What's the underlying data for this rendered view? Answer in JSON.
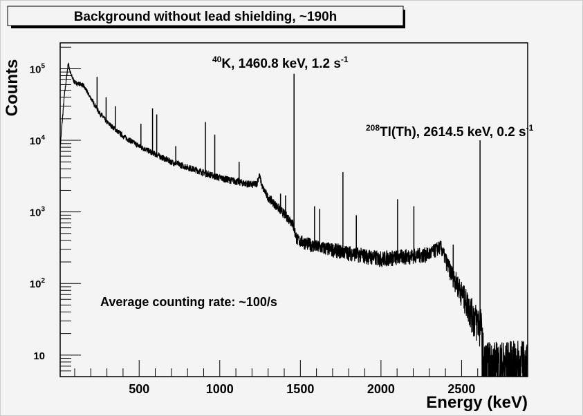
{
  "chart_data": {
    "type": "line",
    "title": "Background without lead shielding, ~190h",
    "xlabel": "Energy (keV)",
    "ylabel": "Counts",
    "xlim": [
      10,
      2910
    ],
    "ylim": [
      5,
      230000
    ],
    "yscale": "log",
    "grid": false,
    "x_ticks": [
      500,
      1000,
      1500,
      2000,
      2500
    ],
    "x_tick_labels": [
      "500",
      "1000",
      "1500",
      "2000",
      "2500"
    ],
    "y_ticks": [
      {
        "value": 10,
        "base": "10",
        "exp": ""
      },
      {
        "value": 100,
        "base": "10",
        "exp": "2"
      },
      {
        "value": 1000,
        "base": "10",
        "exp": "3"
      },
      {
        "value": 10000,
        "base": "10",
        "exp": "4"
      },
      {
        "value": 100000,
        "base": "10",
        "exp": "5"
      }
    ],
    "continuum": [
      [
        10,
        8000
      ],
      [
        35,
        40000
      ],
      [
        60,
        120000
      ],
      [
        75,
        85000
      ],
      [
        100,
        64000
      ],
      [
        150,
        60000
      ],
      [
        200,
        39000
      ],
      [
        250,
        25000
      ],
      [
        300,
        18000
      ],
      [
        400,
        11500
      ],
      [
        500,
        8300
      ],
      [
        700,
        5000
      ],
      [
        1000,
        3000
      ],
      [
        1200,
        2400
      ],
      [
        1230,
        2500
      ],
      [
        1245,
        3300
      ],
      [
        1265,
        2200
      ],
      [
        1300,
        1600
      ],
      [
        1450,
        720
      ],
      [
        1480,
        410
      ],
      [
        1600,
        330
      ],
      [
        2000,
        225
      ],
      [
        2300,
        260
      ],
      [
        2370,
        330
      ],
      [
        2420,
        170
      ],
      [
        2500,
        77
      ],
      [
        2580,
        35
      ],
      [
        2620,
        28
      ],
      [
        2640,
        7
      ],
      [
        2910,
        7.5
      ]
    ],
    "peaks": [
      [
        239,
        77000
      ],
      [
        295,
        40000
      ],
      [
        352,
        30000
      ],
      [
        511,
        17000
      ],
      [
        583,
        28000
      ],
      [
        609,
        23000
      ],
      [
        727,
        8300
      ],
      [
        911,
        18000
      ],
      [
        969,
        12000
      ],
      [
        1120,
        5000
      ],
      [
        1377,
        1800
      ],
      [
        1408,
        1700
      ],
      [
        1460.8,
        85000
      ],
      [
        1588,
        1200
      ],
      [
        1620,
        1100
      ],
      [
        1764,
        3600
      ],
      [
        1847,
        900
      ],
      [
        2103,
        1500
      ],
      [
        2204,
        1200
      ],
      [
        2448,
        350
      ],
      [
        2614.5,
        10000
      ]
    ],
    "annotations": [
      {
        "id": "k40",
        "sup": "40",
        "text": "K, 1460.8 keV, 1.2 s",
        "unit_sup": "-1"
      },
      {
        "id": "tl208",
        "sup": "208",
        "text": "Tl(Th), 2614.5 keV, 0.2 s",
        "unit_sup": "-1"
      },
      {
        "id": "rate",
        "text": "Average counting rate: ~100/s"
      }
    ],
    "line_color": "#000000",
    "background_color": "#f4f4f4"
  }
}
